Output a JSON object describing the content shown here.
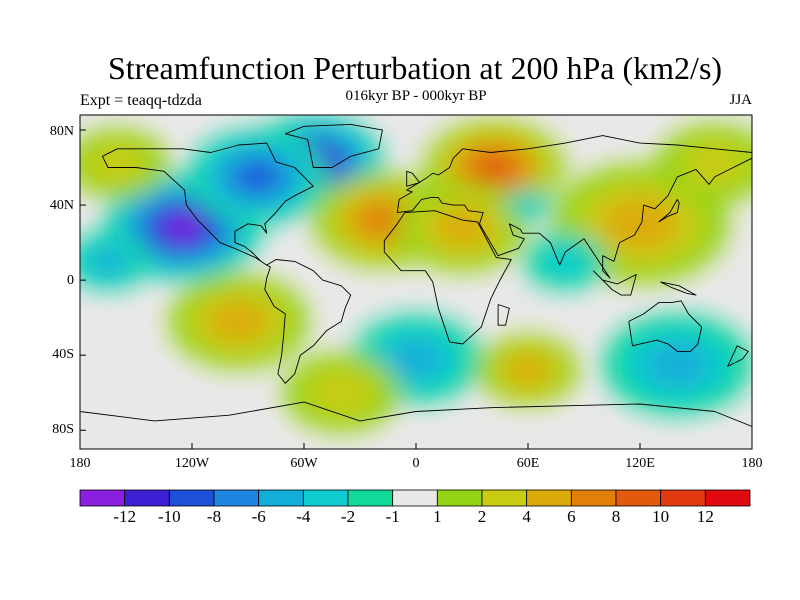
{
  "header": {
    "title": "Streamfunction Perturbation at 200 hPa (km2/s)",
    "subtitle": "016kyr BP - 000kyr BP",
    "left_label": "Expt = teaqq-tdzda",
    "right_label": "JJA"
  },
  "axes": {
    "lat_ticks": [
      "80N",
      "40N",
      "0",
      "40S",
      "80S"
    ],
    "lon_ticks": [
      "180",
      "120W",
      "60W",
      "0",
      "60E",
      "120E",
      "180"
    ]
  },
  "colorbar": {
    "labels": [
      "-12",
      "-10",
      "-8",
      "-6",
      "-4",
      "-2",
      "-1",
      "1",
      "2",
      "4",
      "6",
      "8",
      "10",
      "12"
    ],
    "colors": [
      "#8a1fe0",
      "#3d1fd6",
      "#1e4fd8",
      "#1e86e0",
      "#12aed8",
      "#10ccd0",
      "#12d89a",
      "#e8e8e8",
      "#94d414",
      "#c8cc12",
      "#dcaa0a",
      "#e27e0a",
      "#e25a0c",
      "#e23a10",
      "#e00a10"
    ]
  },
  "map": {
    "blobs": [
      {
        "lon": -125,
        "lat": 28,
        "value": -13,
        "r": 34
      },
      {
        "lon": -55,
        "lat": 63,
        "value": -12,
        "r": 30
      },
      {
        "lon": -85,
        "lat": 55,
        "value": -9,
        "r": 30
      },
      {
        "lon": -165,
        "lat": 10,
        "value": -4,
        "r": 18
      },
      {
        "lon": -18,
        "lat": 32,
        "value": 7,
        "r": 30
      },
      {
        "lon": 42,
        "lat": 60,
        "value": 9,
        "r": 30
      },
      {
        "lon": 25,
        "lat": 28,
        "value": 4,
        "r": 28
      },
      {
        "lon": 120,
        "lat": 30,
        "value": 4,
        "r": 38
      },
      {
        "lon": 160,
        "lat": 62,
        "value": 3,
        "r": 25
      },
      {
        "lon": -95,
        "lat": -22,
        "value": 5,
        "r": 30
      },
      {
        "lon": 0,
        "lat": -42,
        "value": -5,
        "r": 28
      },
      {
        "lon": 60,
        "lat": -48,
        "value": 4,
        "r": 22
      },
      {
        "lon": 140,
        "lat": -45,
        "value": -4,
        "r": 32
      },
      {
        "lon": -160,
        "lat": 62,
        "value": 3,
        "r": 22
      },
      {
        "lon": -40,
        "lat": -60,
        "value": 3,
        "r": 25
      },
      {
        "lon": 80,
        "lat": 10,
        "value": -2,
        "r": 18
      },
      {
        "lon": 60,
        "lat": 40,
        "value": -3,
        "r": 10
      }
    ],
    "land_outlines": [
      [
        [
          -168,
          66
        ],
        [
          -160,
          70
        ],
        [
          -140,
          70
        ],
        [
          -125,
          70
        ],
        [
          -110,
          68
        ],
        [
          -95,
          72
        ],
        [
          -80,
          73
        ],
        [
          -75,
          63
        ],
        [
          -65,
          60
        ],
        [
          -60,
          55
        ],
        [
          -55,
          50
        ],
        [
          -65,
          45
        ],
        [
          -70,
          42
        ],
        [
          -76,
          35
        ],
        [
          -81,
          30
        ],
        [
          -80,
          25
        ],
        [
          -83,
          29
        ],
        [
          -90,
          30
        ],
        [
          -97,
          26
        ],
        [
          -97,
          20
        ],
        [
          -92,
          18
        ],
        [
          -88,
          15
        ],
        [
          -83,
          10
        ],
        [
          -80,
          8
        ],
        [
          -86,
          12
        ],
        [
          -95,
          16
        ],
        [
          -105,
          20
        ],
        [
          -110,
          25
        ],
        [
          -117,
          32
        ],
        [
          -123,
          40
        ],
        [
          -124,
          48
        ],
        [
          -135,
          58
        ],
        [
          -150,
          60
        ],
        [
          -165,
          60
        ],
        [
          -168,
          66
        ]
      ],
      [
        [
          -80,
          8
        ],
        [
          -75,
          11
        ],
        [
          -65,
          10
        ],
        [
          -55,
          5
        ],
        [
          -50,
          0
        ],
        [
          -40,
          -3
        ],
        [
          -35,
          -8
        ],
        [
          -38,
          -15
        ],
        [
          -40,
          -22
        ],
        [
          -48,
          -27
        ],
        [
          -55,
          -35
        ],
        [
          -62,
          -40
        ],
        [
          -65,
          -50
        ],
        [
          -70,
          -55
        ],
        [
          -74,
          -50
        ],
        [
          -72,
          -40
        ],
        [
          -71,
          -30
        ],
        [
          -70,
          -18
        ],
        [
          -76,
          -14
        ],
        [
          -81,
          -5
        ],
        [
          -80,
          1
        ],
        [
          -78,
          7
        ],
        [
          -80,
          8
        ]
      ],
      [
        [
          -6,
          36
        ],
        [
          10,
          37
        ],
        [
          25,
          32
        ],
        [
          33,
          31
        ],
        [
          43,
          12
        ],
        [
          51,
          11
        ],
        [
          45,
          0
        ],
        [
          40,
          -10
        ],
        [
          35,
          -25
        ],
        [
          25,
          -34
        ],
        [
          18,
          -33
        ],
        [
          12,
          -15
        ],
        [
          9,
          -1
        ],
        [
          5,
          5
        ],
        [
          -8,
          5
        ],
        [
          -17,
          15
        ],
        [
          -17,
          21
        ],
        [
          -10,
          30
        ],
        [
          -6,
          36
        ]
      ],
      [
        [
          -10,
          36
        ],
        [
          -9,
          43
        ],
        [
          -2,
          47
        ],
        [
          -5,
          48
        ],
        [
          5,
          54
        ],
        [
          9,
          57
        ],
        [
          12,
          56
        ],
        [
          18,
          60
        ],
        [
          20,
          65
        ],
        [
          25,
          70
        ],
        [
          40,
          68
        ],
        [
          60,
          70
        ],
        [
          80,
          73
        ],
        [
          100,
          77
        ],
        [
          120,
          73
        ],
        [
          140,
          72
        ],
        [
          160,
          70
        ],
        [
          180,
          68
        ],
        [
          180,
          65
        ],
        [
          170,
          60
        ],
        [
          160,
          55
        ],
        [
          157,
          51
        ],
        [
          150,
          59
        ],
        [
          140,
          55
        ],
        [
          135,
          45
        ],
        [
          128,
          38
        ],
        [
          122,
          40
        ],
        [
          121,
          31
        ],
        [
          117,
          24
        ],
        [
          109,
          20
        ],
        [
          106,
          10
        ],
        [
          100,
          13
        ],
        [
          100,
          5
        ],
        [
          104,
          1
        ],
        [
          98,
          10
        ],
        [
          94,
          16
        ],
        [
          90,
          22
        ],
        [
          80,
          15
        ],
        [
          77,
          8
        ],
        [
          72,
          20
        ],
        [
          66,
          25
        ],
        [
          57,
          25
        ],
        [
          56,
          27
        ],
        [
          50,
          30
        ],
        [
          52,
          24
        ],
        [
          58,
          22
        ],
        [
          55,
          17
        ],
        [
          44,
          13
        ],
        [
          34,
          30
        ],
        [
          36,
          36
        ],
        [
          28,
          37
        ],
        [
          26,
          40
        ],
        [
          20,
          40
        ],
        [
          14,
          41
        ],
        [
          12,
          44
        ],
        [
          8,
          44
        ],
        [
          3,
          43
        ],
        [
          -2,
          37
        ],
        [
          -10,
          36
        ]
      ],
      [
        [
          114,
          -22
        ],
        [
          122,
          -18
        ],
        [
          130,
          -12
        ],
        [
          137,
          -12
        ],
        [
          142,
          -11
        ],
        [
          146,
          -18
        ],
        [
          153,
          -25
        ],
        [
          151,
          -34
        ],
        [
          147,
          -38
        ],
        [
          140,
          -38
        ],
        [
          135,
          -34
        ],
        [
          129,
          -32
        ],
        [
          116,
          -35
        ],
        [
          114,
          -22
        ]
      ],
      [
        [
          -55,
          60
        ],
        [
          -45,
          60
        ],
        [
          -35,
          66
        ],
        [
          -20,
          70
        ],
        [
          -18,
          80
        ],
        [
          -35,
          83
        ],
        [
          -60,
          82
        ],
        [
          -70,
          78
        ],
        [
          -58,
          75
        ],
        [
          -55,
          60
        ]
      ],
      [
        [
          -5,
          50
        ],
        [
          2,
          52
        ],
        [
          -2,
          57
        ],
        [
          -5,
          58
        ],
        [
          -5,
          50
        ]
      ],
      [
        [
          -180,
          -70
        ],
        [
          -140,
          -75
        ],
        [
          -100,
          -72
        ],
        [
          -60,
          -65
        ],
        [
          -30,
          -75
        ],
        [
          0,
          -70
        ],
        [
          40,
          -68
        ],
        [
          80,
          -67
        ],
        [
          120,
          -66
        ],
        [
          160,
          -70
        ],
        [
          180,
          -78
        ]
      ],
      [
        [
          130,
          31
        ],
        [
          135,
          34
        ],
        [
          140,
          36
        ],
        [
          141,
          41
        ],
        [
          140,
          43
        ],
        [
          136,
          36
        ],
        [
          130,
          31
        ]
      ],
      [
        [
          95,
          5
        ],
        [
          105,
          -5
        ],
        [
          110,
          -8
        ],
        [
          115,
          -8
        ],
        [
          118,
          3
        ],
        [
          108,
          -2
        ],
        [
          100,
          0
        ],
        [
          95,
          5
        ]
      ],
      [
        [
          131,
          -1
        ],
        [
          141,
          -3
        ],
        [
          150,
          -8
        ],
        [
          145,
          -7
        ],
        [
          137,
          -4
        ],
        [
          131,
          -1
        ]
      ],
      [
        [
          172,
          -35
        ],
        [
          178,
          -38
        ],
        [
          175,
          -42
        ],
        [
          167,
          -46
        ],
        [
          172,
          -35
        ]
      ],
      [
        [
          44,
          -13
        ],
        [
          50,
          -15
        ],
        [
          48,
          -24
        ],
        [
          44,
          -24
        ],
        [
          44,
          -13
        ]
      ]
    ]
  }
}
